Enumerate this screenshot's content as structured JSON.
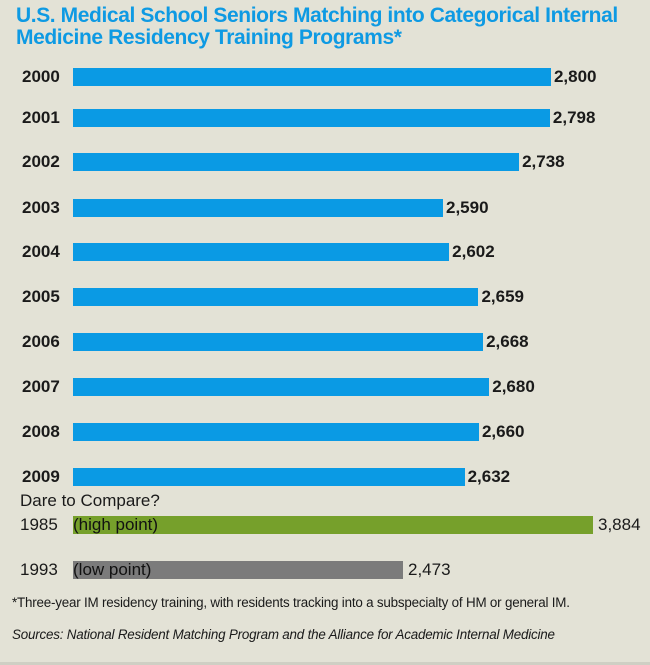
{
  "chart_data": {
    "type": "bar",
    "orientation": "horizontal",
    "title": "U.S. Medical School Seniors Matching into Categorical Internal Medicine Residency Training Programs*",
    "categories": [
      "2000",
      "2001",
      "2002",
      "2003",
      "2004",
      "2005",
      "2006",
      "2007",
      "2008",
      "2009"
    ],
    "values": [
      2800,
      2798,
      2738,
      2590,
      2602,
      2659,
      2668,
      2680,
      2660,
      2632
    ],
    "value_labels": [
      "2,800",
      "2,798",
      "2,738",
      "2,590",
      "2,602",
      "2,659",
      "2,668",
      "2,680",
      "2,660",
      "2,632"
    ],
    "series_color": "#0a9ae4",
    "comparison": {
      "heading": "Dare to Compare?",
      "items": [
        {
          "year": "1985",
          "note": "(high point)",
          "value": 3884,
          "value_label": "3,884",
          "color": "#76a02b"
        },
        {
          "year": "1993",
          "note": "(low point)",
          "value": 2473,
          "value_label": "2,473",
          "color": "#7b7b7b"
        }
      ]
    },
    "xlabel": "",
    "ylabel": "",
    "grid": false,
    "legend": "none"
  },
  "footnote": "*Three-year IM residency training, with residents tracking into a subspecialty of HM or general IM.",
  "sources": "Sources: National Resident Matching Program and the Alliance for Academic Internal Medicine",
  "colors": {
    "title": "#0e9ae3",
    "background": "#e3e2d6"
  }
}
